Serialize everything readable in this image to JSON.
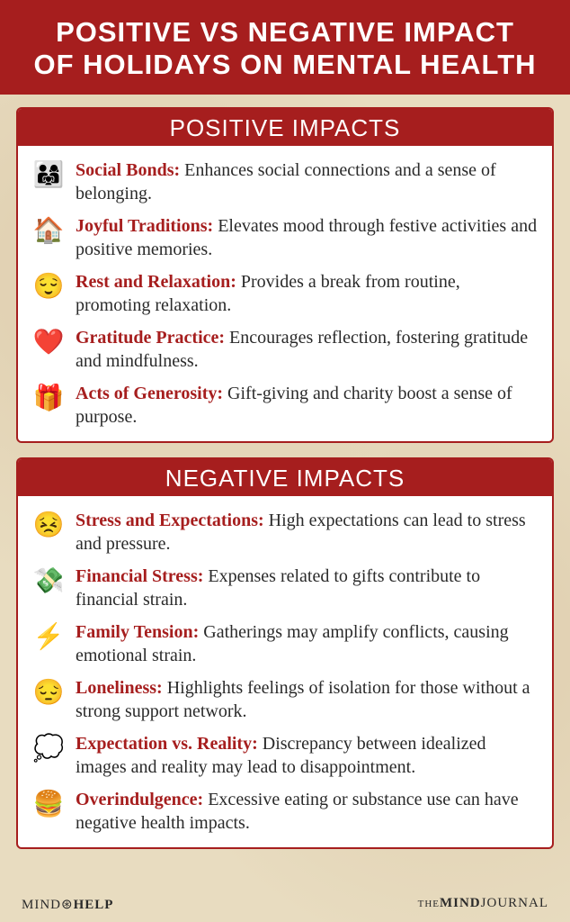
{
  "title_line1": "POSITIVE VS NEGATIVE IMPACT",
  "title_line2": "OF HOLIDAYS ON MENTAL HEALTH",
  "colors": {
    "header_bg": "#a61e1e",
    "header_text": "#ffffff",
    "page_bg": "#e8dcc0",
    "card_bg": "#ffffff",
    "label_color": "#a61e1e",
    "body_text": "#2a2a2a"
  },
  "typography": {
    "title_fontsize": 31,
    "section_header_fontsize": 26,
    "item_fontsize": 20
  },
  "sections": [
    {
      "header": "POSITIVE IMPACTS",
      "items": [
        {
          "icon": "👨‍👩‍👧",
          "label": "Social Bonds:",
          "desc": " Enhances social connections and a sense of belonging."
        },
        {
          "icon": "🏠",
          "label": "Joyful Traditions:",
          "desc": " Elevates mood through festive activities and positive memories."
        },
        {
          "icon": "😌",
          "label": "Rest and Relaxation:",
          "desc": " Provides a break from routine, promoting relaxation."
        },
        {
          "icon": "❤️",
          "label": "Gratitude Practice:",
          "desc": " Encourages reflection, fostering gratitude and mindfulness."
        },
        {
          "icon": "🎁",
          "label": "Acts of Generosity:",
          "desc": " Gift-giving and charity boost a sense of purpose."
        }
      ]
    },
    {
      "header": "NEGATIVE IMPACTS",
      "items": [
        {
          "icon": "😣",
          "label": "Stress and Expectations:",
          "desc": " High expectations can lead to stress and pressure."
        },
        {
          "icon": "💸",
          "label": "Financial Stress:",
          "desc": " Expenses related to gifts contribute to financial strain."
        },
        {
          "icon": "⚡",
          "label": "Family Tension:",
          "desc": " Gatherings may amplify conflicts, causing emotional strain."
        },
        {
          "icon": "😔",
          "label": "Loneliness:",
          "desc": " Highlights feelings of isolation for those without a strong support network."
        },
        {
          "icon": "💭",
          "label": "Expectation vs. Reality:",
          "desc": " Discrepancy between idealized images and reality may lead to disappointment."
        },
        {
          "icon": "🍔",
          "label": "Overindulgence:",
          "desc": " Excessive eating or substance use can have negative health impacts."
        }
      ]
    }
  ],
  "footer": {
    "left_plain": "MIND",
    "left_symbol": "⊛",
    "left_bold": "HELP",
    "right_plain": "THE",
    "right_bold": "MIND",
    "right_plain2": "JOURNAL"
  }
}
